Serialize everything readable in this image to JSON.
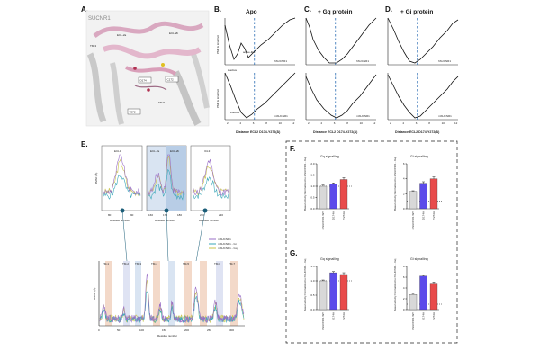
{
  "panel_labels": {
    "a": "A.",
    "b": "B.",
    "c": "C.",
    "d": "D.",
    "e": "E.",
    "f": "F.",
    "g": "G."
  },
  "structure": {
    "title": "SUCNR1",
    "labels": [
      "TM-3",
      "ECL-2a",
      "ECL-2b",
      "TM-5",
      "D174",
      "C172",
      "Y272"
    ]
  },
  "pmf": {
    "titles": [
      "Apo",
      "+ Gq protein",
      "+ Gi protein"
    ],
    "ylabel": "PMF E kcal/mol",
    "xlabel": "Distance ECL2 D174-Y272(Å)",
    "states": [
      "inactive",
      "active-like"
    ],
    "receptors": [
      "hSUCNR1",
      "mSUCNR1"
    ],
    "ticks": [
      "2",
      "4",
      "6",
      "8",
      "10",
      "12"
    ]
  },
  "rmsf": {
    "ylabel": "RMSF (Å)",
    "xlabel": "Residue number",
    "insets": [
      "ECL1",
      "ECL-2a",
      "ECL-2b",
      "ICL3"
    ],
    "legend": [
      "mSUCNR1",
      "mSUCNR1 - Gi",
      "mSUCNR1 - Gq"
    ],
    "tm_labels": [
      "TM-1",
      "TM-2",
      "TM-3",
      "TM-4",
      "TM-5",
      "TM-6",
      "TM-7"
    ],
    "ecl_labels": [
      "ECL1",
      "ECL2",
      "ICL3"
    ],
    "main_ticks": [
      "0",
      "50",
      "100",
      "150",
      "200",
      "250",
      "300"
    ],
    "inset_ticks": [
      [
        "80",
        "90"
      ],
      [
        "160",
        "170",
        "180"
      ],
      [
        "220",
        "230"
      ]
    ],
    "colors": {
      "m": "#9a6fc7",
      "gi": "#3aa7b8",
      "gq": "#c8c34a"
    }
  },
  "chart_data": [
    {
      "type": "bar",
      "title": "Gq signalling",
      "ylabel": "Basal activity Normalized to mSUCNR1 - Gq",
      "categories": [
        "mSUCNR1 WT",
        "D174A",
        "Y272A"
      ],
      "values": [
        1.0,
        1.1,
        1.3
      ],
      "errors": [
        0.05,
        0.05,
        0.08
      ],
      "ylim": [
        0,
        2
      ],
      "ticks": [
        "0.0",
        "0.5",
        "1.0",
        "1.5",
        "2.0"
      ],
      "colors": [
        "#d8d8d8",
        "#5b4bea",
        "#e84b4b"
      ]
    },
    {
      "type": "bar",
      "title": "Gi signalling",
      "ylabel": "Basal activity Normalized to mSUCNR1 - Gq",
      "categories": [
        "mSUCNR1 WT",
        "D174A",
        "Y272A"
      ],
      "values": [
        2.3,
        3.4,
        4.0
      ],
      "errors": [
        0.1,
        0.2,
        0.25
      ],
      "ylim": [
        0,
        6
      ],
      "ticks": [
        "0",
        "2",
        "4",
        "6"
      ],
      "colors": [
        "#d8d8d8",
        "#5b4bea",
        "#e84b4b"
      ]
    },
    {
      "type": "bar",
      "title": "Gq signalling",
      "ylabel": "Basal activity Normalized to hSUCNR1 - Gq",
      "categories": [
        "hSUCNR1 WT",
        "D174A",
        "Y272A"
      ],
      "values": [
        1.0,
        1.28,
        1.22
      ],
      "errors": [
        0.03,
        0.04,
        0.06
      ],
      "ylim": [
        0,
        1.5
      ],
      "ticks": [
        "0.0",
        "0.5",
        "1.0",
        "1.5"
      ],
      "colors": [
        "#d8d8d8",
        "#5b4bea",
        "#e84b4b"
      ]
    },
    {
      "type": "bar",
      "title": "Gi signalling",
      "ylabel": "Basal activity Normalized to hSUCNR1 - Gq",
      "categories": [
        "hSUCNR1 WT",
        "D174A",
        "Y272A"
      ],
      "values": [
        2.8,
        6.2,
        4.9
      ],
      "errors": [
        0.2,
        0.15,
        0.2
      ],
      "ylim": [
        0,
        8
      ],
      "ticks": [
        "0",
        "2",
        "4",
        "6",
        "8"
      ],
      "colors": [
        "#d8d8d8",
        "#5b4bea",
        "#e84b4b"
      ]
    }
  ]
}
